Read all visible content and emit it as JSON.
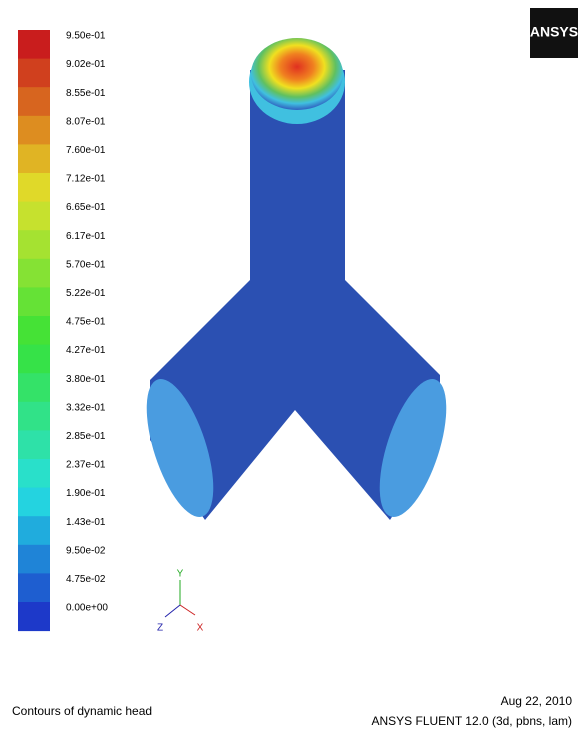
{
  "logo": "ANSYS",
  "colorbar": {
    "labels": [
      "9.50e-01",
      "9.02e-01",
      "8.55e-01",
      "8.07e-01",
      "7.60e-01",
      "7.12e-01",
      "6.65e-01",
      "6.17e-01",
      "5.70e-01",
      "5.22e-01",
      "4.75e-01",
      "4.27e-01",
      "3.80e-01",
      "3.32e-01",
      "2.85e-01",
      "2.37e-01",
      "1.90e-01",
      "1.43e-01",
      "9.50e-02",
      "4.75e-02",
      "0.00e+00"
    ]
  },
  "axes": {
    "y": "Y",
    "z": "Z",
    "x": "X"
  },
  "footer": {
    "caption": "Contours of dynamic head",
    "date": "Aug 22, 2010",
    "software": "ANSYS FLUENT 12.0 (3d, pbns, lam)"
  }
}
